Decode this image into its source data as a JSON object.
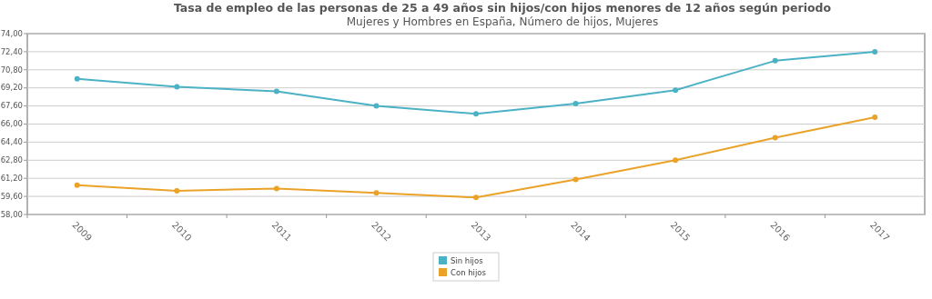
{
  "chart_data": {
    "type": "line",
    "title": "Tasa de empleo de las personas de 25 a 49 años sin hijos/con hijos menores de 12 años según periodo",
    "subtitle": "Mujeres y Hombres en España, Número de hijos, Mujeres",
    "categories": [
      "2009",
      "2010",
      "2011",
      "2012",
      "2013",
      "2014",
      "2015",
      "2016",
      "2017"
    ],
    "series": [
      {
        "name": "Sin hijos",
        "color": "#4bb2c5",
        "values": [
          70.0,
          69.3,
          68.9,
          67.6,
          66.9,
          67.8,
          69.0,
          71.6,
          72.4
        ]
      },
      {
        "name": "Con hijos",
        "color": "#eaa228",
        "values": [
          60.6,
          60.1,
          60.3,
          59.9,
          59.5,
          61.1,
          62.8,
          64.8,
          66.6
        ]
      }
    ],
    "ylim": [
      58,
      74
    ],
    "yticks": [
      {
        "value": 58,
        "label": "58,00"
      },
      {
        "value": 59.6,
        "label": "59,60"
      },
      {
        "value": 61.2,
        "label": "61,20"
      },
      {
        "value": 62.8,
        "label": "62,80"
      },
      {
        "value": 64.4,
        "label": "64,40"
      },
      {
        "value": 66,
        "label": "66,00"
      },
      {
        "value": 67.6,
        "label": "67,60"
      },
      {
        "value": 69.2,
        "label": "69,20"
      },
      {
        "value": 70.8,
        "label": "70,80"
      },
      {
        "value": 72.4,
        "label": "72,40"
      },
      {
        "value": 74,
        "label": "74,00"
      }
    ],
    "grid": "y",
    "legend": "bottom",
    "marker": "circle",
    "line_style": "solid"
  }
}
